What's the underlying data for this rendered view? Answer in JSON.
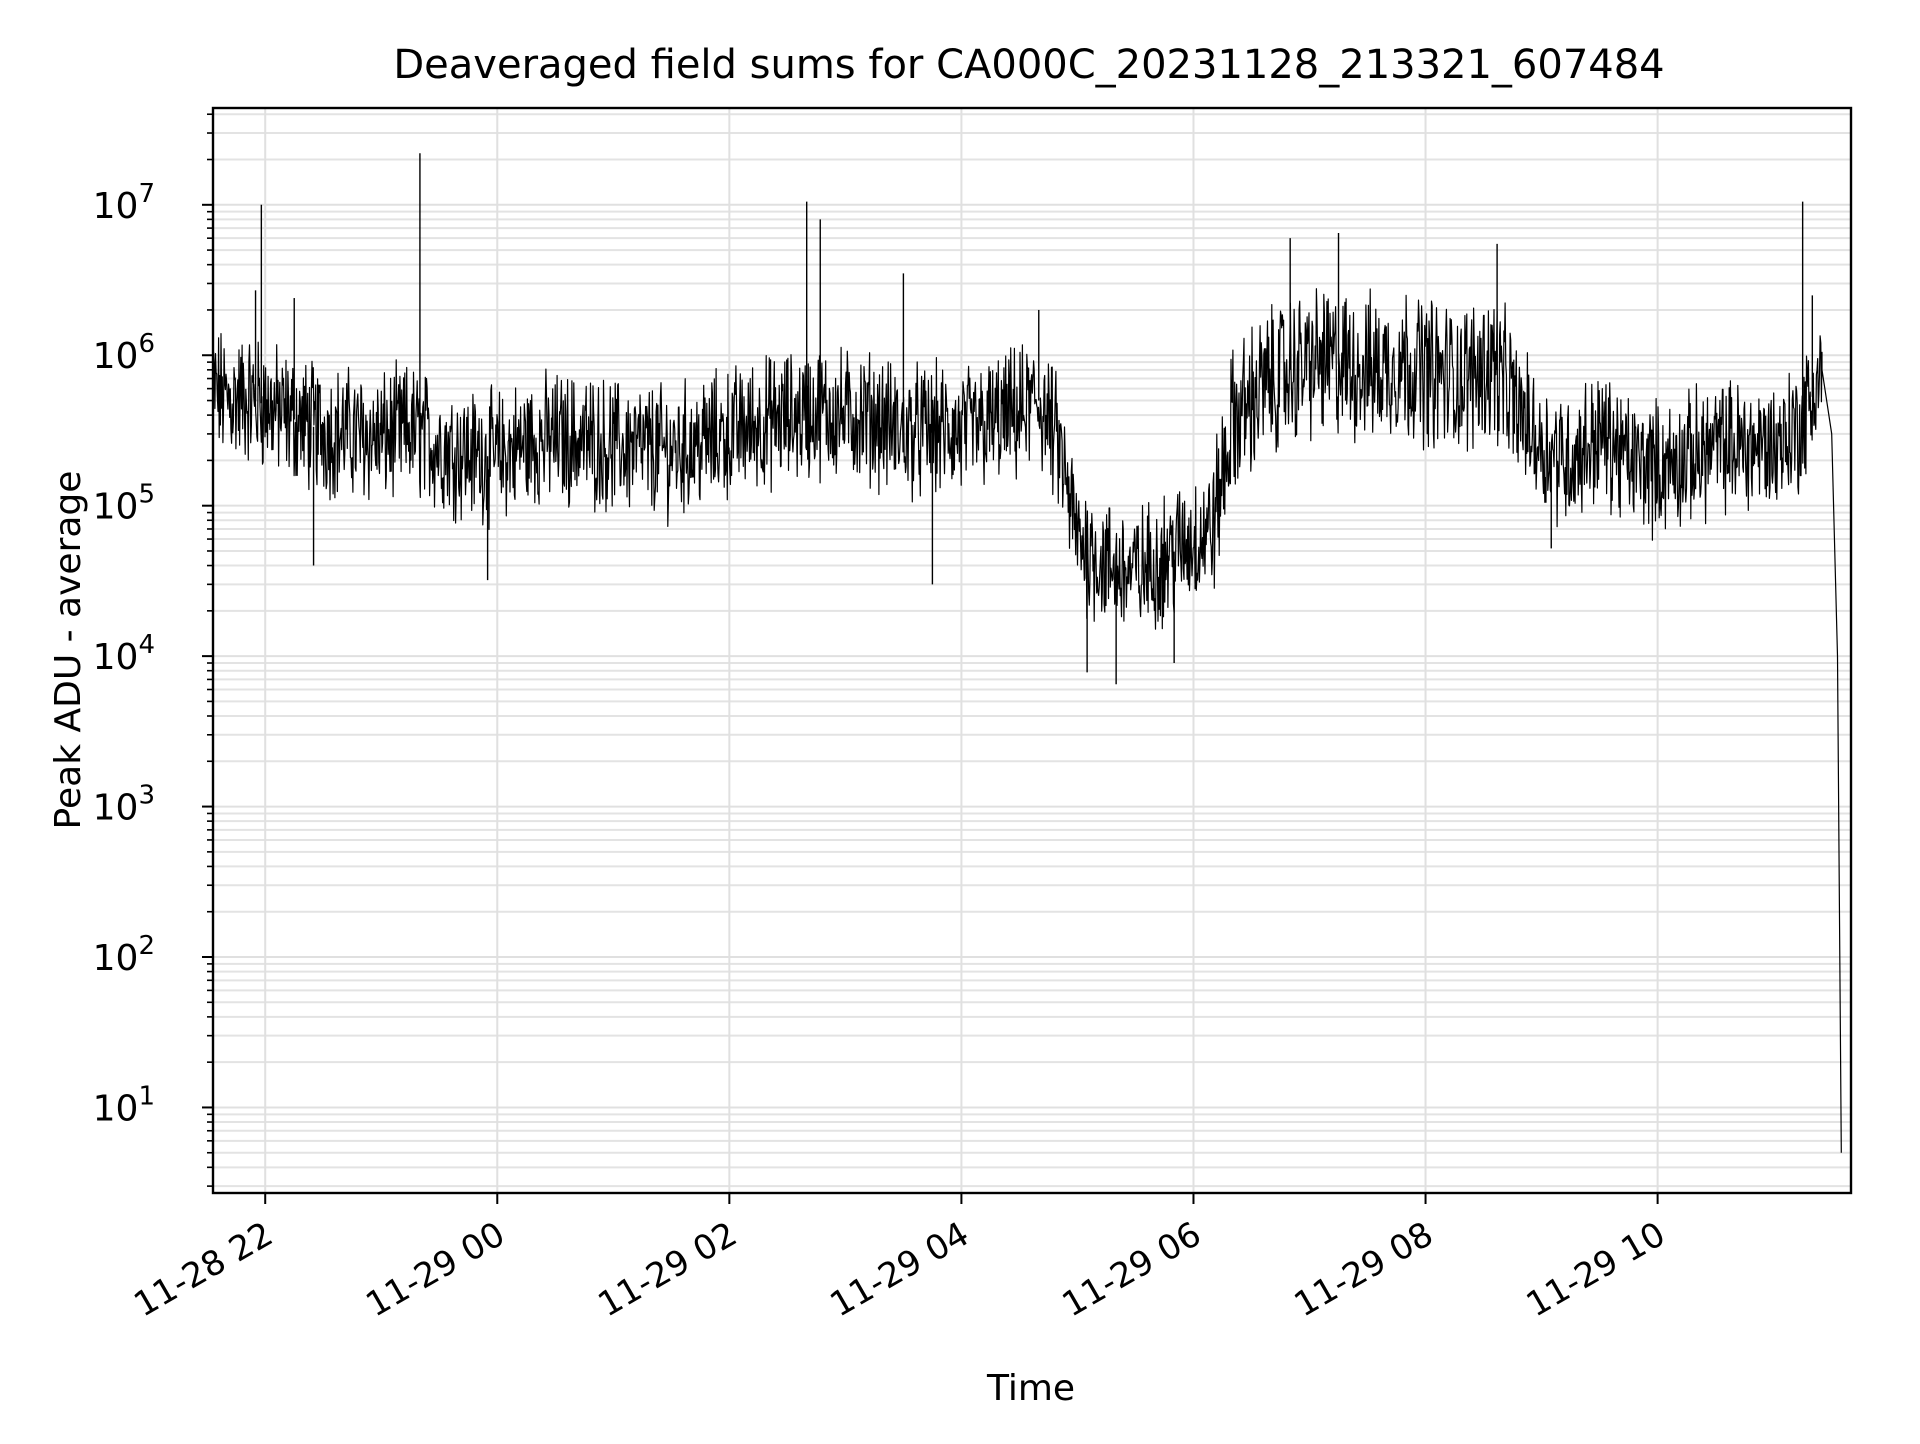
{
  "chart_data": {
    "type": "line",
    "title": "Deaveraged field sums for CA000C_20231128_213321_607484",
    "xlabel": "Time",
    "ylabel": "Peak ADU - average",
    "yscale": "log",
    "ylim": [
      2.7,
      44000000.0
    ],
    "xlim": [
      "2023-11-28 21:33",
      "2023-11-29 11:40"
    ],
    "grid": true,
    "legend": "none",
    "line_color": "#000000",
    "x_ticks": [
      {
        "t": "2023-11-28 22:00",
        "label": "11-28 22"
      },
      {
        "t": "2023-11-29 00:00",
        "label": "11-29 00"
      },
      {
        "t": "2023-11-29 02:00",
        "label": "11-29 02"
      },
      {
        "t": "2023-11-29 04:00",
        "label": "11-29 04"
      },
      {
        "t": "2023-11-29 06:00",
        "label": "11-29 06"
      },
      {
        "t": "2023-11-29 08:00",
        "label": "11-29 08"
      },
      {
        "t": "2023-11-29 10:00",
        "label": "11-29 10"
      }
    ],
    "y_ticks": [
      {
        "value": 10,
        "base": "10",
        "exp": "1"
      },
      {
        "value": 100,
        "base": "10",
        "exp": "2"
      },
      {
        "value": 1000,
        "base": "10",
        "exp": "3"
      },
      {
        "value": 10000,
        "base": "10",
        "exp": "4"
      },
      {
        "value": 100000,
        "base": "10",
        "exp": "5"
      },
      {
        "value": 1000000,
        "base": "10",
        "exp": "6"
      },
      {
        "value": 10000000,
        "base": "10",
        "exp": "7"
      }
    ],
    "series": [
      {
        "x": [
          "2023-11-28 21:33",
          "2023-11-28 21:40",
          "2023-11-28 21:50",
          "2023-11-28 21:58",
          "2023-11-28 22:10",
          "2023-11-28 22:20",
          "2023-11-28 22:30",
          "2023-11-28 22:45",
          "2023-11-28 23:00",
          "2023-11-28 23:15",
          "2023-11-28 23:30",
          "2023-11-28 23:45",
          "2023-11-29 00:00",
          "2023-11-29 00:15",
          "2023-11-29 00:30",
          "2023-11-29 00:45",
          "2023-11-29 01:00",
          "2023-11-29 01:15",
          "2023-11-29 01:30",
          "2023-11-29 01:45",
          "2023-11-29 02:00",
          "2023-11-29 02:15",
          "2023-11-29 02:30",
          "2023-11-29 02:45",
          "2023-11-29 03:00",
          "2023-11-29 03:15",
          "2023-11-29 03:30",
          "2023-11-29 03:45",
          "2023-11-29 04:00",
          "2023-11-29 04:15",
          "2023-11-29 04:30",
          "2023-11-29 04:40",
          "2023-11-29 04:50",
          "2023-11-29 05:00",
          "2023-11-29 05:15",
          "2023-11-29 05:30",
          "2023-11-29 05:45",
          "2023-11-29 06:00",
          "2023-11-29 06:10",
          "2023-11-29 06:20",
          "2023-11-29 06:35",
          "2023-11-29 06:50",
          "2023-11-29 07:05",
          "2023-11-29 07:20",
          "2023-11-29 07:35",
          "2023-11-29 07:50",
          "2023-11-29 08:05",
          "2023-11-29 08:20",
          "2023-11-29 08:35",
          "2023-11-29 08:45",
          "2023-11-29 09:00",
          "2023-11-29 09:15",
          "2023-11-29 09:30",
          "2023-11-29 09:45",
          "2023-11-29 10:00",
          "2023-11-29 10:15",
          "2023-11-29 10:30",
          "2023-11-29 10:45",
          "2023-11-29 11:00",
          "2023-11-29 11:15",
          "2023-11-29 11:25",
          "2023-11-29 11:30",
          "2023-11-29 11:33",
          "2023-11-29 11:35"
        ],
        "y": [
          600000,
          500000,
          520000,
          480000,
          400000,
          350000,
          320000,
          300000,
          280000,
          320000,
          250000,
          220000,
          210000,
          260000,
          280000,
          270000,
          250000,
          240000,
          230000,
          260000,
          300000,
          350000,
          380000,
          420000,
          400000,
          380000,
          300000,
          320000,
          300000,
          350000,
          400000,
          500000,
          250000,
          60000,
          40000,
          35000,
          45000,
          60000,
          70000,
          350000,
          600000,
          800000,
          900000,
          850000,
          800000,
          900000,
          750000,
          700000,
          900000,
          500000,
          250000,
          200000,
          300000,
          200000,
          180000,
          200000,
          250000,
          250000,
          250000,
          350000,
          800000,
          300000,
          10000,
          5
        ]
      }
    ],
    "spikes": [
      {
        "x": "2023-11-28 21:58",
        "y": 10000000
      },
      {
        "x": "2023-11-28 21:55",
        "y": 2700000
      },
      {
        "x": "2023-11-28 22:15",
        "y": 2400000
      },
      {
        "x": "2023-11-28 23:20",
        "y": 22000000
      },
      {
        "x": "2023-11-29 02:40",
        "y": 10500000
      },
      {
        "x": "2023-11-29 02:47",
        "y": 8000000
      },
      {
        "x": "2023-11-29 03:30",
        "y": 3500000
      },
      {
        "x": "2023-11-29 04:40",
        "y": 2000000
      },
      {
        "x": "2023-11-29 06:50",
        "y": 6000000
      },
      {
        "x": "2023-11-29 07:15",
        "y": 6500000
      },
      {
        "x": "2023-11-29 08:37",
        "y": 5500000
      },
      {
        "x": "2023-11-29 11:15",
        "y": 10500000
      },
      {
        "x": "2023-11-29 11:20",
        "y": 2500000
      }
    ],
    "dips": [
      {
        "x": "2023-11-28 22:25",
        "y": 40000
      },
      {
        "x": "2023-11-28 23:55",
        "y": 32000
      },
      {
        "x": "2023-11-29 03:45",
        "y": 30000
      },
      {
        "x": "2023-11-29 05:20",
        "y": 6500
      },
      {
        "x": "2023-11-29 05:05",
        "y": 7800
      },
      {
        "x": "2023-11-29 05:50",
        "y": 9000
      },
      {
        "x": "2023-11-29 09:05",
        "y": 52000
      }
    ]
  }
}
